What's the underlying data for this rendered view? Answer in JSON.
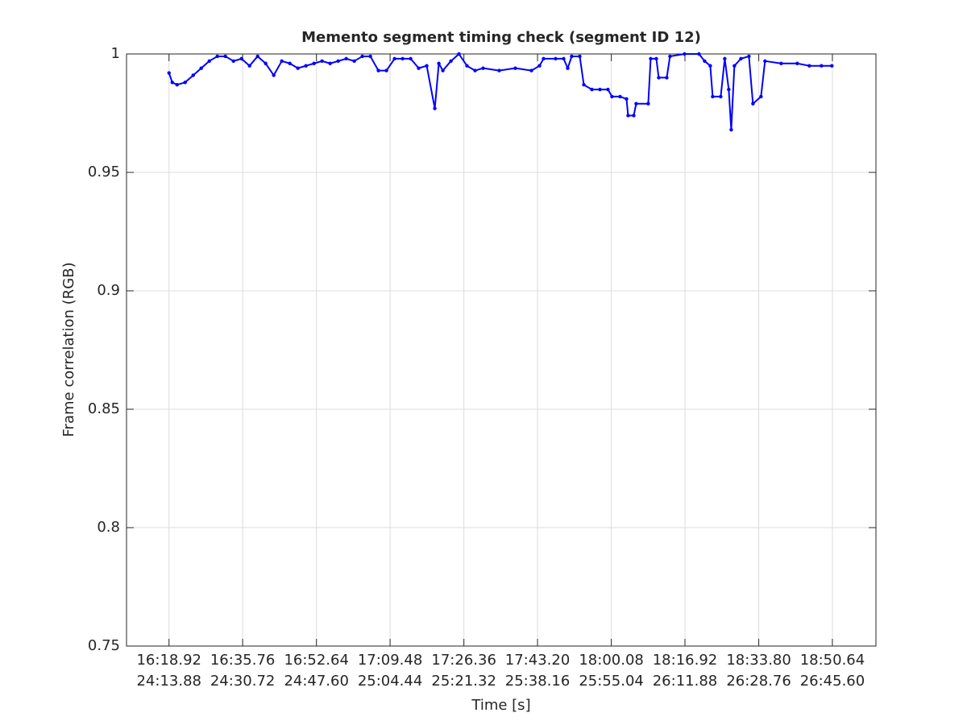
{
  "chart_data": {
    "type": "line",
    "title": "Memento segment timing check (segment ID 12)",
    "xlabel": "Time [s]",
    "ylabel": "Frame correlation (RGB)",
    "xlim": [
      969.2,
      1140.6
    ],
    "ylim": [
      0.75,
      1
    ],
    "yticks": [
      0.75,
      0.8,
      0.85,
      0.9,
      0.95,
      1
    ],
    "xticks": [
      {
        "value": 978.92,
        "label": "16:18.92"
      },
      {
        "value": 995.76,
        "label": "16:35.76"
      },
      {
        "value": 1012.64,
        "label": "16:52.64"
      },
      {
        "value": 1029.48,
        "label": "17:09.48"
      },
      {
        "value": 1046.36,
        "label": "17:26.36"
      },
      {
        "value": 1063.2,
        "label": "17:43.20"
      },
      {
        "value": 1080.08,
        "label": "18:00.08"
      },
      {
        "value": 1096.92,
        "label": "18:16.92"
      },
      {
        "value": 1113.8,
        "label": "18:33.80"
      },
      {
        "value": 1130.64,
        "label": "18:50.64"
      }
    ],
    "xtick_labels2": [
      "24:13.88",
      "24:30.72",
      "24:47.60",
      "25:04.44",
      "25:21.32",
      "25:38.16",
      "25:55.04",
      "26:11.88",
      "26:28.76",
      "26:45.60"
    ],
    "grid": true,
    "series": [
      {
        "color": "#0000ff",
        "x": [
          978.92,
          979.66,
          980.76,
          982.6,
          984.45,
          986.29,
          988.13,
          989.97,
          991.81,
          993.66,
          995.5,
          997.34,
          999.18,
          1001.02,
          1002.87,
          1004.71,
          1006.55,
          1008.39,
          1010.23,
          1012.08,
          1013.92,
          1015.76,
          1017.6,
          1019.44,
          1021.29,
          1023.13,
          1024.97,
          1026.81,
          1028.65,
          1030.5,
          1032.34,
          1034.18,
          1036.02,
          1037.86,
          1039.71,
          1040.63,
          1041.55,
          1043.39,
          1045.23,
          1047.07,
          1048.92,
          1050.76,
          1054.44,
          1058.13,
          1061.81,
          1063.65,
          1064.58,
          1067.34,
          1069.18,
          1070.1,
          1071.02,
          1072.86,
          1073.79,
          1075.63,
          1077.47,
          1079.31,
          1080.23,
          1082.08,
          1083.55,
          1083.92,
          1085.21,
          1085.76,
          1088.52,
          1089.08,
          1090.37,
          1090.92,
          1092.76,
          1093.5,
          1096.81,
          1100.13,
          1101.42,
          1102.71,
          1103.26,
          1105.1,
          1106.02,
          1106.94,
          1107.5,
          1108.23,
          1109.71,
          1111.55,
          1112.47,
          1114.31,
          1115.23,
          1118.92,
          1122.6,
          1125.36,
          1128.13,
          1130.52
        ],
        "values": [
          0.992,
          0.988,
          0.987,
          0.988,
          0.991,
          0.994,
          0.997,
          0.999,
          0.999,
          0.997,
          0.998,
          0.995,
          0.999,
          0.996,
          0.991,
          0.997,
          0.996,
          0.994,
          0.995,
          0.996,
          0.997,
          0.996,
          0.997,
          0.998,
          0.997,
          0.999,
          0.999,
          0.993,
          0.993,
          0.998,
          0.998,
          0.998,
          0.994,
          0.995,
          0.977,
          0.996,
          0.993,
          0.997,
          1.0,
          0.995,
          0.993,
          0.994,
          0.993,
          0.994,
          0.993,
          0.995,
          0.998,
          0.998,
          0.998,
          0.994,
          0.999,
          0.999,
          0.987,
          0.985,
          0.985,
          0.985,
          0.982,
          0.982,
          0.981,
          0.974,
          0.974,
          0.979,
          0.979,
          0.998,
          0.998,
          0.99,
          0.99,
          0.999,
          1.0,
          1.0,
          0.997,
          0.995,
          0.982,
          0.982,
          0.998,
          0.985,
          0.968,
          0.995,
          0.998,
          0.999,
          0.979,
          0.982,
          0.997,
          0.996,
          0.996,
          0.995,
          0.995,
          0.995
        ]
      }
    ]
  }
}
